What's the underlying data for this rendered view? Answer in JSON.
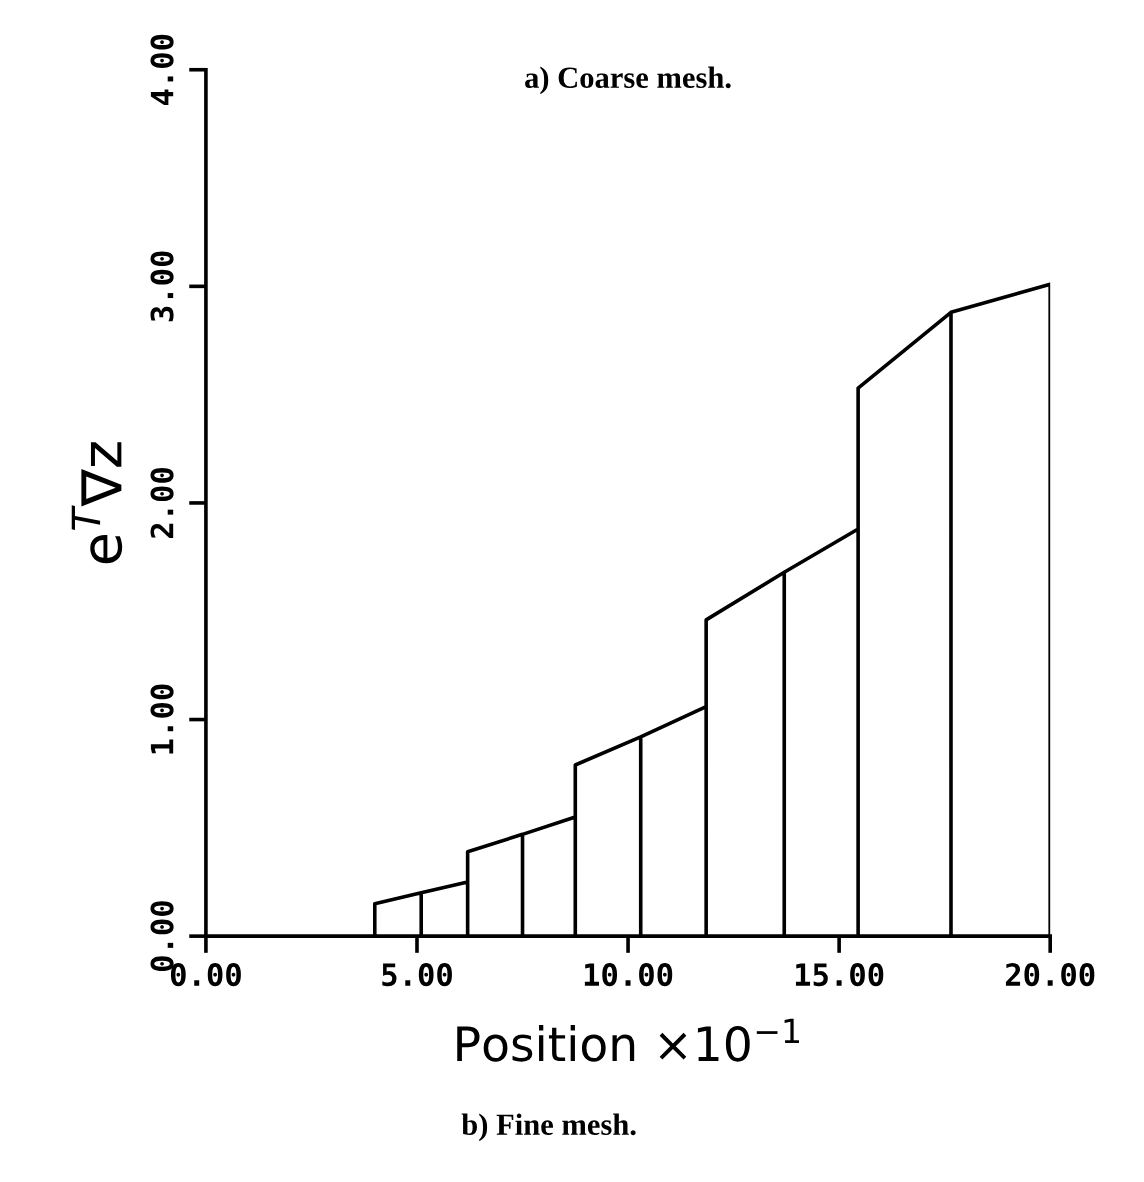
{
  "chart_data": {
    "type": "line",
    "title": "a) Coarse mesh.",
    "xlabel": "Position ×10$^{−1}$",
    "ylabel": "e$^{T}$∇z",
    "annotations": [
      "b) Fine mesh."
    ],
    "series": [
      {
        "color": "#000000",
        "x": [
          4.0,
          4.0,
          5.1,
          5.1,
          5.1,
          6.2,
          6.2,
          6.2,
          7.5,
          7.5,
          7.5,
          8.75,
          8.75,
          8.75,
          10.3,
          10.3,
          10.3,
          11.85,
          11.85,
          11.85,
          13.7,
          13.7,
          13.7,
          15.45,
          15.45,
          15.45,
          17.65,
          17.65,
          17.65,
          20.0,
          20.0
        ],
        "values": [
          0,
          0.15,
          0.2,
          0,
          0.2,
          0.25,
          0,
          0.39,
          0.47,
          0,
          0.47,
          0.55,
          0,
          0.79,
          0.92,
          0,
          0.92,
          1.06,
          0,
          1.46,
          1.68,
          0,
          1.68,
          1.88,
          0,
          2.53,
          2.88,
          0,
          2.88,
          3.01,
          0
        ]
      }
    ],
    "xlim": [
      0,
      20
    ],
    "ylim": [
      0,
      4
    ],
    "xticks": [
      {
        "value": 0,
        "label": "0.00"
      },
      {
        "value": 5,
        "label": "5.00"
      },
      {
        "value": 10,
        "label": "10.00"
      },
      {
        "value": 15,
        "label": "15.00"
      },
      {
        "value": 20,
        "label": "20.00"
      }
    ],
    "yticks": [
      {
        "value": 0,
        "label": "0.00"
      },
      {
        "value": 1,
        "label": "1.00"
      },
      {
        "value": 2,
        "label": "2.00"
      },
      {
        "value": 3,
        "label": "3.00"
      },
      {
        "value": 4,
        "label": "4.00"
      }
    ],
    "grid": false,
    "legend": false,
    "marker": "none",
    "line_style": "solid"
  }
}
